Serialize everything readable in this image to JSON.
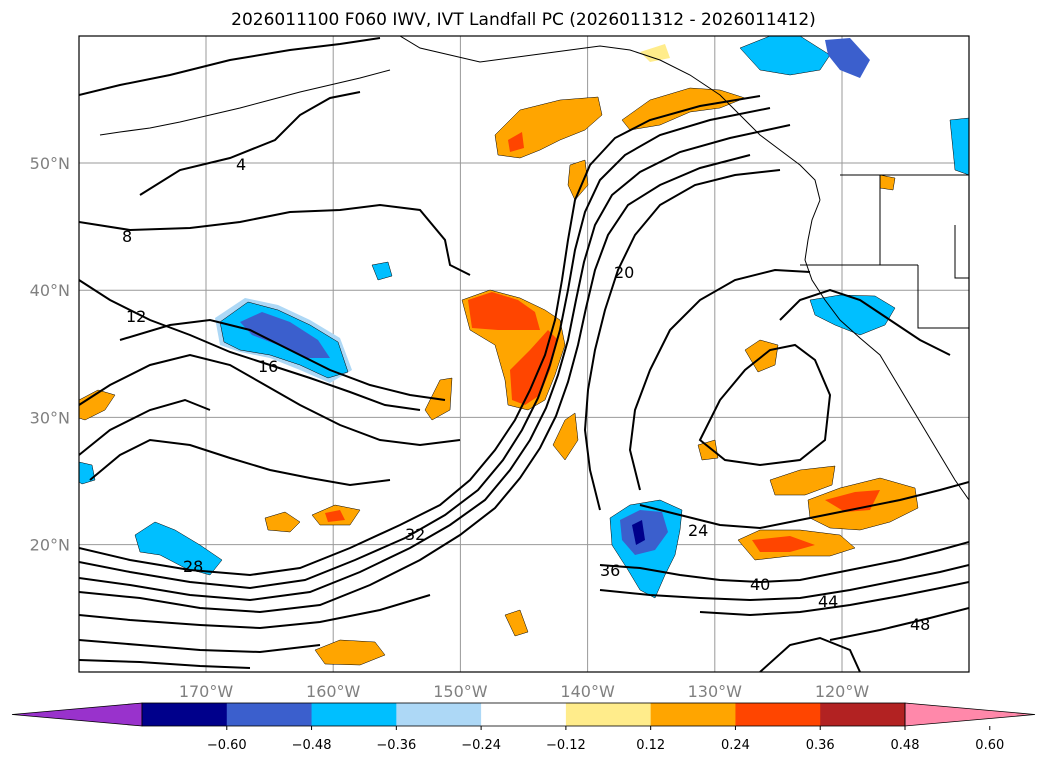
{
  "title": "2026011100 F060 IWV, IVT Landfall PC (2026011312 - 2026011412)",
  "chart_data": {
    "type": "contour-map",
    "title": "2026011100 F060 IWV, IVT Landfall PC (2026011312 - 2026011412)",
    "lon_range": [
      -180,
      -110
    ],
    "lat_range": [
      10,
      60
    ],
    "lon_ticks": [
      "170°W",
      "160°W",
      "150°W",
      "140°W",
      "130°W",
      "120°W"
    ],
    "lat_ticks": [
      "50°N",
      "40°N",
      "30°N",
      "20°N"
    ],
    "colorbar": {
      "ticks": [
        "−0.60",
        "−0.48",
        "−0.36",
        "−0.24",
        "−0.12",
        "0.12",
        "0.24",
        "0.36",
        "0.48",
        "0.60"
      ],
      "colors": [
        "#9932cc",
        "#00008b",
        "#3b5fcd",
        "#00bfff",
        "#add8f6",
        "#ffffff",
        "#ffec8b",
        "#ffa500",
        "#ff4500",
        "#b22222",
        "#ff88aa"
      ]
    },
    "contour_labels": [
      "4",
      "8",
      "12",
      "16",
      "20",
      "24",
      "28",
      "32",
      "36",
      "40",
      "44",
      "48"
    ]
  }
}
